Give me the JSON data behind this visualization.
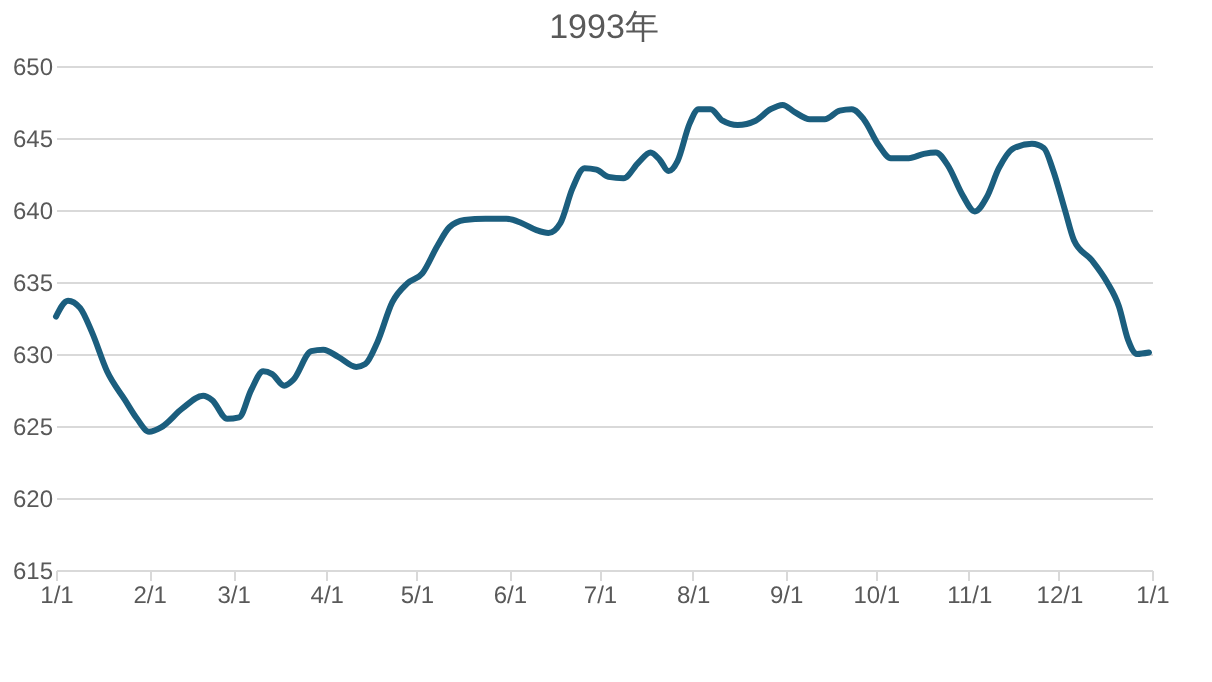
{
  "chart_data": {
    "type": "line",
    "title": "1993年",
    "x": [
      "1993-01-01",
      "1993-01-05",
      "1993-01-09",
      "1993-01-13",
      "1993-01-18",
      "1993-01-24",
      "1993-01-28",
      "1993-02-01",
      "1993-02-05",
      "1993-02-12",
      "1993-02-19",
      "1993-02-22",
      "1993-02-27",
      "1993-03-03",
      "1993-03-07",
      "1993-03-11",
      "1993-03-14",
      "1993-03-18",
      "1993-03-21",
      "1993-03-27",
      "1993-03-31",
      "1993-04-05",
      "1993-04-11",
      "1993-04-14",
      "1993-04-18",
      "1993-04-23",
      "1993-04-28",
      "1993-05-03",
      "1993-05-08",
      "1993-05-12",
      "1993-05-17",
      "1993-05-24",
      "1993-05-31",
      "1993-06-05",
      "1993-06-10",
      "1993-06-14",
      "1993-06-18",
      "1993-06-22",
      "1993-06-26",
      "1993-06-30",
      "1993-07-04",
      "1993-07-09",
      "1993-07-14",
      "1993-07-18",
      "1993-07-21",
      "1993-07-24",
      "1993-07-27",
      "1993-07-31",
      "1993-08-03",
      "1993-08-07",
      "1993-08-11",
      "1993-08-16",
      "1993-08-22",
      "1993-08-27",
      "1993-08-31",
      "1993-09-04",
      "1993-09-09",
      "1993-09-14",
      "1993-09-19",
      "1993-09-23",
      "1993-09-27",
      "1993-10-02",
      "1993-10-06",
      "1993-10-12",
      "1993-10-17",
      "1993-10-21",
      "1993-10-25",
      "1993-10-30",
      "1993-11-03",
      "1993-11-07",
      "1993-11-11",
      "1993-11-16",
      "1993-11-22",
      "1993-11-26",
      "1993-11-29",
      "1993-12-03",
      "1993-12-06",
      "1993-12-12",
      "1993-12-17",
      "1993-12-21",
      "1993-12-24",
      "1993-12-27",
      "1993-12-31"
    ],
    "series": [
      {
        "color": "#1b5e7e",
        "values": [
          632.6,
          633.7,
          633.2,
          631.5,
          628.8,
          626.8,
          625.5,
          624.6,
          624.9,
          626.2,
          627.1,
          626.8,
          625.5,
          625.6,
          627.5,
          628.8,
          628.6,
          627.8,
          628.2,
          630.2,
          630.3,
          629.8,
          629.1,
          629.3,
          630.8,
          633.6,
          634.9,
          635.6,
          637.5,
          638.8,
          639.3,
          639.4,
          639.4,
          639.1,
          638.6,
          638.4,
          639.1,
          641.5,
          642.9,
          642.8,
          642.3,
          642.2,
          643.3,
          644.0,
          643.5,
          642.7,
          643.4,
          646.0,
          647.0,
          647.0,
          646.2,
          645.9,
          646.2,
          647.0,
          647.3,
          646.8,
          646.3,
          646.3,
          646.9,
          647.0,
          646.3,
          644.5,
          643.6,
          643.6,
          643.9,
          644.0,
          643.1,
          641.0,
          639.9,
          640.9,
          642.9,
          644.3,
          644.6,
          644.3,
          642.8,
          640.0,
          637.9,
          636.5,
          635.0,
          633.3,
          631.0,
          630.0,
          630.1
        ]
      }
    ],
    "xlim": [
      "1993-01-01",
      "1994-01-01"
    ],
    "xticks": [
      {
        "value": "1993-01-01",
        "label": "1/1"
      },
      {
        "value": "1993-02-01",
        "label": "2/1"
      },
      {
        "value": "1993-03-01",
        "label": "3/1"
      },
      {
        "value": "1993-04-01",
        "label": "4/1"
      },
      {
        "value": "1993-05-01",
        "label": "5/1"
      },
      {
        "value": "1993-06-01",
        "label": "6/1"
      },
      {
        "value": "1993-07-01",
        "label": "7/1"
      },
      {
        "value": "1993-08-01",
        "label": "8/1"
      },
      {
        "value": "1993-09-01",
        "label": "9/1"
      },
      {
        "value": "1993-10-01",
        "label": "10/1"
      },
      {
        "value": "1993-11-01",
        "label": "11/1"
      },
      {
        "value": "1993-12-01",
        "label": "12/1"
      },
      {
        "value": "1994-01-01",
        "label": "1/1"
      }
    ],
    "ylim": [
      615,
      650
    ],
    "yticks": [
      615,
      620,
      625,
      630,
      635,
      640,
      645,
      650
    ],
    "grid": "y",
    "marker": "none",
    "line_style": "solid"
  }
}
